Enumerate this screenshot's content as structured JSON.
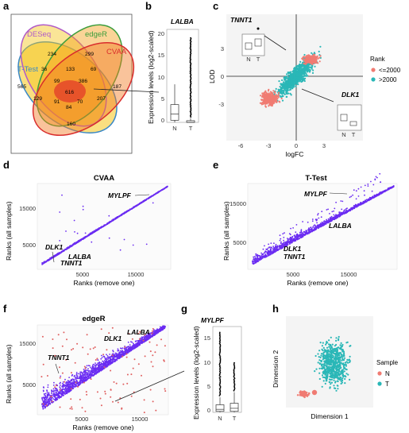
{
  "panel_letters": [
    "a",
    "b",
    "c",
    "d",
    "e",
    "f",
    "g",
    "h"
  ],
  "colors": {
    "rank_le": "#f07b72",
    "rank_gt": "#2ab7b7",
    "scatter": "#6b2cf2",
    "scatter_red": "#e06060",
    "desq": "#b05ac8",
    "edger": "#3c9d3c",
    "cvaa": "#d92c2c",
    "ttest": "#3a88c6"
  },
  "venn": {
    "sets": [
      "DESeq",
      "edgeR",
      "CVAA",
      "T-Test"
    ],
    "counts": [
      "234",
      "299",
      "565",
      "187",
      "36",
      "133",
      "69",
      "99",
      "386",
      "129",
      "616",
      "207",
      "160",
      "91",
      "70",
      "84"
    ]
  },
  "chart_data": [
    {
      "id": "b",
      "type": "box",
      "title": "LALBA",
      "ylabel": "Expression levels (log2-scaled)",
      "categories": [
        "N",
        "T"
      ],
      "ylim": [
        0,
        22
      ],
      "yticks": [
        "0",
        "5",
        "10",
        "15",
        "20"
      ],
      "boxes": [
        {
          "name": "N",
          "q1": 0.5,
          "median": 2.0,
          "q3": 4.2,
          "whisk_lo": 0,
          "whisk_hi": 9
        },
        {
          "name": "T",
          "q1": 0,
          "median": 0,
          "q3": 0.4,
          "whisk_lo": 0,
          "whisk_hi": 1,
          "outliers_to": 20
        }
      ]
    },
    {
      "id": "c",
      "type": "scatter",
      "gene_a": "TNNT1",
      "gene_b": "DLK1",
      "xlabel": "logFC",
      "ylabel": "LOD",
      "xticks": [
        "-6",
        "-3",
        "0",
        "3"
      ],
      "yticks": [
        "3",
        "0",
        "-3"
      ],
      "legend_title": "Rank",
      "legend": [
        "<=2000",
        ">2000"
      ],
      "box_labels": [
        "N",
        "T"
      ]
    },
    {
      "id": "d",
      "type": "scatter",
      "title": "CVAA",
      "xlabel": "Ranks (remove one)",
      "ylabel": "Ranks (all samples)",
      "xticks": [
        "5000",
        "15000"
      ],
      "yticks": [
        "5000",
        "15000"
      ],
      "genes": [
        "MYLPF",
        "DLK1",
        "LALBA",
        "TNNT1"
      ]
    },
    {
      "id": "e",
      "type": "scatter",
      "title": "T-Test",
      "xlabel": "Ranks (remove one)",
      "ylabel": "Ranks (all samples)",
      "xticks": [
        "5000",
        "15000"
      ],
      "yticks": [
        "5000",
        "15000"
      ],
      "genes": [
        "MYLPF",
        "LALBA",
        "DLK1",
        "TNNT1"
      ]
    },
    {
      "id": "f",
      "type": "scatter",
      "title": "edgeR",
      "xlabel": "Ranks (remove one)",
      "ylabel": "Ranks (all samples)",
      "xticks": [
        "5000",
        "15000"
      ],
      "yticks": [
        "5000",
        "15000"
      ],
      "genes": [
        "LALBA",
        "DLK1",
        "TNNT1"
      ]
    },
    {
      "id": "g",
      "type": "box",
      "title": "MYLPF",
      "ylabel": "Expression levels (log2-scaled)",
      "categories": [
        "N",
        "T"
      ],
      "ylim": [
        0,
        17
      ],
      "yticks": [
        "0",
        "5",
        "10",
        "15"
      ],
      "boxes": [
        {
          "name": "N",
          "q1": 0.2,
          "median": 0.6,
          "q3": 1.5,
          "whisk_lo": 0,
          "whisk_hi": 3,
          "outliers_to": 16
        },
        {
          "name": "T",
          "q1": 0.2,
          "median": 0.8,
          "q3": 1.8,
          "whisk_lo": 0,
          "whisk_hi": 4,
          "outliers_to": 10
        }
      ]
    },
    {
      "id": "h",
      "type": "scatter",
      "xlabel": "Dimension 1",
      "ylabel": "Dimension 2",
      "legend_title": "Sample",
      "legend": [
        "N",
        "T"
      ]
    }
  ]
}
